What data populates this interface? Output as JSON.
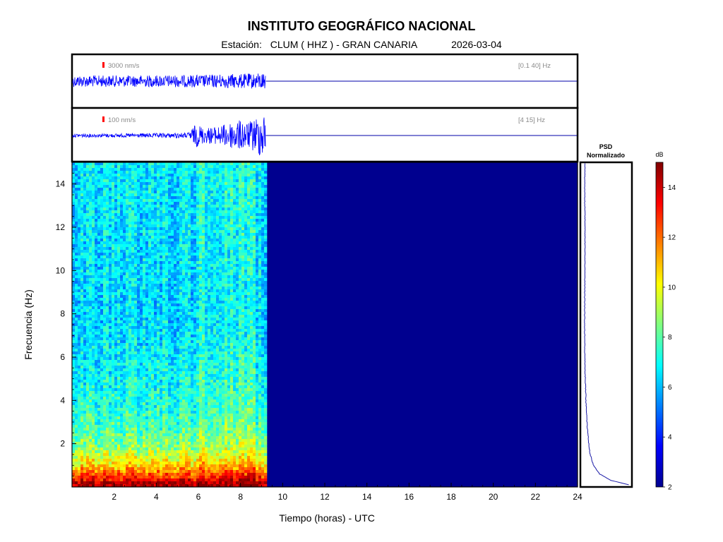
{
  "header": {
    "title": "INSTITUTO GEOGRÁFICO NACIONAL",
    "station_label": "Estación:",
    "station": "CLUM ( HHZ ) - GRAN CANARIA",
    "date": "2026-03-04"
  },
  "colors": {
    "trace": "#0000ff",
    "scale_bar": "#ff0000",
    "background_empty": "#00008f",
    "frame": "#000000",
    "psd_curve": "#1a1aa6"
  },
  "chart_data": [
    {
      "type": "line",
      "name": "seismogram-broadband",
      "amplitude_label": "3000 nm/s",
      "band_label": "[0.1 40] Hz",
      "x_range": [
        0,
        24
      ],
      "data_end_hour": 9.2,
      "envelope": [
        {
          "t": 0,
          "amp": 0.22
        },
        {
          "t": 3,
          "amp": 0.22
        },
        {
          "t": 6,
          "amp": 0.24
        },
        {
          "t": 8.8,
          "amp": 0.3
        },
        {
          "t": 9.2,
          "amp": 0.36
        }
      ]
    },
    {
      "type": "line",
      "name": "seismogram-filtered",
      "amplitude_label": "100 nm/s",
      "band_label": "[4 15] Hz",
      "x_range": [
        0,
        24
      ],
      "data_end_hour": 9.2,
      "envelope": [
        {
          "t": 0,
          "amp": 0.07
        },
        {
          "t": 2,
          "amp": 0.07
        },
        {
          "t": 5.5,
          "amp": 0.1
        },
        {
          "t": 5.9,
          "amp": 0.45
        },
        {
          "t": 6.3,
          "amp": 0.3
        },
        {
          "t": 7,
          "amp": 0.35
        },
        {
          "t": 7.8,
          "amp": 0.6
        },
        {
          "t": 8.4,
          "amp": 0.5
        },
        {
          "t": 8.8,
          "amp": 0.75
        },
        {
          "t": 9.2,
          "amp": 0.95
        }
      ]
    },
    {
      "type": "heatmap",
      "name": "spectrogram",
      "xlabel": "Tiempo (horas) - UTC",
      "ylabel": "Frecuencia  (Hz)",
      "xlim": [
        0,
        24
      ],
      "ylim": [
        0,
        15
      ],
      "x_ticks": [
        "2",
        "4",
        "6",
        "8",
        "10",
        "12",
        "14",
        "16",
        "18",
        "20",
        "22",
        "24"
      ],
      "y_ticks": [
        "2",
        "4",
        "6",
        "8",
        "10",
        "12",
        "14"
      ],
      "data_end_hour": 9.2,
      "colormap": "jet",
      "level_profile_db": [
        {
          "f": 0.2,
          "db": 14.2
        },
        {
          "f": 0.5,
          "db": 12.5
        },
        {
          "f": 1,
          "db": 10.5
        },
        {
          "f": 1.5,
          "db": 9.2
        },
        {
          "f": 2,
          "db": 8.2
        },
        {
          "f": 3,
          "db": 7.3
        },
        {
          "f": 4,
          "db": 6.9
        },
        {
          "f": 5,
          "db": 6.6
        },
        {
          "f": 6,
          "db": 6.4
        },
        {
          "f": 8,
          "db": 6.0
        },
        {
          "f": 10,
          "db": 6.1
        },
        {
          "f": 12,
          "db": 6.2
        },
        {
          "f": 15,
          "db": 6.3
        }
      ]
    },
    {
      "type": "line",
      "name": "psd",
      "title_line1": "PSD",
      "title_line2": "Normalizado",
      "ylim": [
        0,
        15
      ],
      "points": [
        {
          "f": 0.1,
          "v": 0.98
        },
        {
          "f": 0.3,
          "v": 0.6
        },
        {
          "f": 0.6,
          "v": 0.35
        },
        {
          "f": 1,
          "v": 0.22
        },
        {
          "f": 1.5,
          "v": 0.15
        },
        {
          "f": 2,
          "v": 0.12
        },
        {
          "f": 3,
          "v": 0.08
        },
        {
          "f": 4,
          "v": 0.06
        },
        {
          "f": 5,
          "v": 0.045
        },
        {
          "f": 6,
          "v": 0.035
        },
        {
          "f": 8,
          "v": 0.03
        },
        {
          "f": 10,
          "v": 0.035
        },
        {
          "f": 12,
          "v": 0.04
        },
        {
          "f": 14,
          "v": 0.03
        },
        {
          "f": 15,
          "v": 0.04
        }
      ]
    },
    {
      "type": "heatmap",
      "name": "colorbar",
      "unit": "dB",
      "range": [
        2,
        15
      ],
      "ticks": [
        "2",
        "4",
        "6",
        "8",
        "10",
        "12",
        "14"
      ]
    }
  ]
}
